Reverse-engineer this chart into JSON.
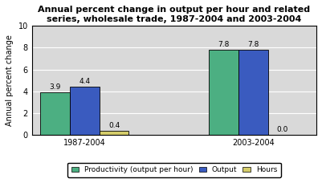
{
  "title": "Annual percent change in output per hour and related\nseries, wholesale trade, 1987-2004 and 2003-2004",
  "groups": [
    "1987-2004",
    "2003-2004"
  ],
  "series": {
    "Productivity (output per hour)": [
      3.9,
      7.8
    ],
    "Output": [
      4.4,
      7.8
    ],
    "Hours": [
      0.4,
      0.0
    ]
  },
  "colors": {
    "Productivity (output per hour)": "#4caf82",
    "Output": "#3a5bbf",
    "Hours": "#d4cc6a"
  },
  "ylim": [
    0,
    10
  ],
  "yticks": [
    0,
    2,
    4,
    6,
    8,
    10
  ],
  "ylabel": "Annual percent change",
  "bar_width": 0.28,
  "group_centers": [
    1.0,
    2.6
  ],
  "legend_labels": [
    "Productivity (output per hour)",
    "Output",
    "Hours"
  ],
  "background_color": "#ffffff",
  "plot_bg_color": "#d9d9d9",
  "title_fontsize": 8,
  "label_fontsize": 7,
  "tick_fontsize": 7,
  "value_fontsize": 6.5
}
